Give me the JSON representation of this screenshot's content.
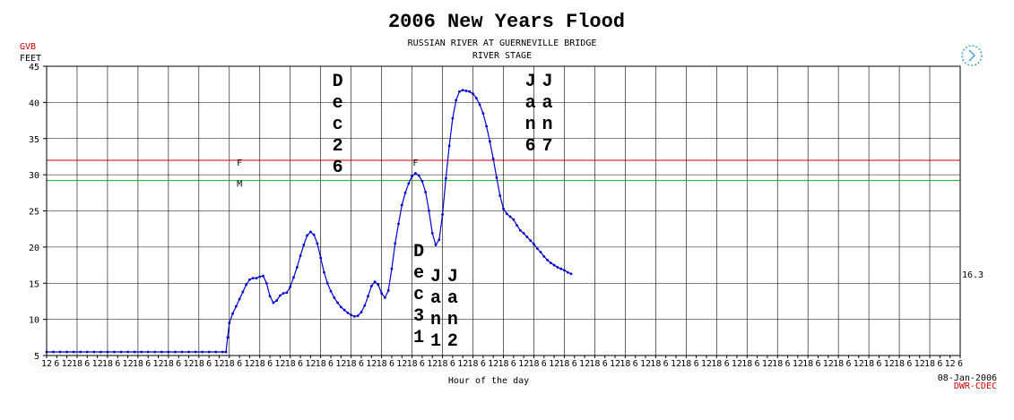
{
  "chart_data": {
    "type": "line",
    "title": "2006 New Years Flood",
    "subtitle_line1": "RUSSIAN RIVER AT GUERNEVILLE BRIDGE",
    "subtitle_line2": "RIVER STAGE",
    "station_code": "GVB",
    "ylabel": "FEET",
    "xlabel": "Hour of the day",
    "ylim": [
      5,
      45
    ],
    "y_ticks": [
      5,
      10,
      15,
      20,
      25,
      30,
      35,
      40,
      45
    ],
    "x_tick_pattern": [
      "6",
      "12",
      "18"
    ],
    "x_first_tick": "12",
    "x_last_tick": "6",
    "grid": true,
    "last_value_label": "16.3",
    "date_label": "08-Jan-2006",
    "source_label": "DWR-CDEC",
    "flood_stage": {
      "label": "F",
      "value": 32,
      "color": "#d00000"
    },
    "monitor_stage": {
      "label": "M",
      "value": 29.2,
      "color": "#22aa22"
    },
    "series": [
      {
        "color": "#0000cc",
        "points": [
          [
            0,
            5.5
          ],
          [
            4,
            5.5
          ],
          [
            8,
            5.5
          ],
          [
            12,
            5.5
          ],
          [
            16,
            5.5
          ],
          [
            20,
            5.5
          ],
          [
            24,
            5.5
          ],
          [
            28,
            5.5
          ],
          [
            32,
            5.5
          ],
          [
            36,
            5.5
          ],
          [
            40,
            5.5
          ],
          [
            44,
            5.5
          ],
          [
            48,
            5.5
          ],
          [
            52,
            5.5
          ],
          [
            56,
            5.5
          ],
          [
            60,
            5.5
          ],
          [
            64,
            5.5
          ],
          [
            68,
            5.5
          ],
          [
            72,
            5.5
          ],
          [
            76,
            5.5
          ],
          [
            80,
            5.5
          ],
          [
            84,
            5.5
          ],
          [
            88,
            5.5
          ],
          [
            92,
            5.5
          ],
          [
            96,
            5.5
          ],
          [
            100,
            5.5
          ],
          [
            104,
            5.5
          ],
          [
            106,
            5.5
          ],
          [
            107,
            7.5
          ],
          [
            108,
            9.5
          ],
          [
            110,
            10.8
          ],
          [
            112,
            11.8
          ],
          [
            114,
            12.8
          ],
          [
            116,
            13.8
          ],
          [
            118,
            14.8
          ],
          [
            120,
            15.5
          ],
          [
            122,
            15.7
          ],
          [
            124,
            15.7
          ],
          [
            126,
            15.9
          ],
          [
            128,
            16.0
          ],
          [
            130,
            15.0
          ],
          [
            132,
            13.2
          ],
          [
            134,
            12.3
          ],
          [
            136,
            12.6
          ],
          [
            138,
            13.3
          ],
          [
            140,
            13.6
          ],
          [
            142,
            13.7
          ],
          [
            144,
            14.5
          ],
          [
            146,
            15.8
          ],
          [
            148,
            17.2
          ],
          [
            150,
            18.8
          ],
          [
            152,
            20.3
          ],
          [
            154,
            21.6
          ],
          [
            156,
            22.1
          ],
          [
            158,
            21.7
          ],
          [
            160,
            20.5
          ],
          [
            162,
            18.5
          ],
          [
            164,
            16.5
          ],
          [
            166,
            15.0
          ],
          [
            168,
            13.9
          ],
          [
            170,
            13.0
          ],
          [
            172,
            12.3
          ],
          [
            174,
            11.7
          ],
          [
            176,
            11.3
          ],
          [
            178,
            10.9
          ],
          [
            180,
            10.6
          ],
          [
            182,
            10.4
          ],
          [
            184,
            10.5
          ],
          [
            186,
            11.0
          ],
          [
            188,
            11.9
          ],
          [
            190,
            13.2
          ],
          [
            192,
            14.6
          ],
          [
            194,
            15.2
          ],
          [
            196,
            14.8
          ],
          [
            198,
            13.6
          ],
          [
            200,
            13.0
          ],
          [
            202,
            14.0
          ],
          [
            204,
            17.0
          ],
          [
            206,
            20.5
          ],
          [
            208,
            23.2
          ],
          [
            210,
            25.8
          ],
          [
            212,
            27.5
          ],
          [
            214,
            28.8
          ],
          [
            216,
            29.8
          ],
          [
            218,
            30.2
          ],
          [
            220,
            29.9
          ],
          [
            222,
            29.1
          ],
          [
            224,
            27.6
          ],
          [
            226,
            25.0
          ],
          [
            228,
            21.9
          ],
          [
            230,
            20.3
          ],
          [
            232,
            21.0
          ],
          [
            234,
            24.5
          ],
          [
            236,
            29.5
          ],
          [
            238,
            34.0
          ],
          [
            240,
            37.8
          ],
          [
            242,
            40.3
          ],
          [
            244,
            41.5
          ],
          [
            246,
            41.7
          ],
          [
            248,
            41.6
          ],
          [
            250,
            41.5
          ],
          [
            252,
            41.2
          ],
          [
            254,
            40.6
          ],
          [
            256,
            39.7
          ],
          [
            258,
            38.5
          ],
          [
            260,
            36.7
          ],
          [
            262,
            34.6
          ],
          [
            264,
            32.2
          ],
          [
            266,
            29.6
          ],
          [
            268,
            27.1
          ],
          [
            270,
            25.3
          ],
          [
            272,
            24.6
          ],
          [
            274,
            24.2
          ],
          [
            276,
            23.8
          ],
          [
            278,
            23.0
          ],
          [
            280,
            22.3
          ],
          [
            282,
            21.9
          ],
          [
            284,
            21.4
          ],
          [
            286,
            20.9
          ],
          [
            288,
            20.4
          ],
          [
            290,
            19.8
          ],
          [
            292,
            19.3
          ],
          [
            294,
            18.7
          ],
          [
            296,
            18.2
          ],
          [
            298,
            17.8
          ],
          [
            300,
            17.5
          ],
          [
            302,
            17.2
          ],
          [
            304,
            17.0
          ],
          [
            306,
            16.8
          ],
          [
            308,
            16.5
          ],
          [
            310,
            16.3
          ]
        ]
      }
    ],
    "annotations": [
      {
        "text": "Dec26",
        "hour": 172,
        "y_top": 45
      },
      {
        "text": "Dec31",
        "hour": 220,
        "y_top": 21.5
      },
      {
        "text": "Jan1",
        "hour": 230,
        "y_top": 18.0
      },
      {
        "text": "Jan2",
        "hour": 240,
        "y_top": 18.0
      },
      {
        "text": "Jan6",
        "hour": 286,
        "y_top": 45
      },
      {
        "text": "Jan7",
        "hour": 296,
        "y_top": 45
      }
    ]
  }
}
